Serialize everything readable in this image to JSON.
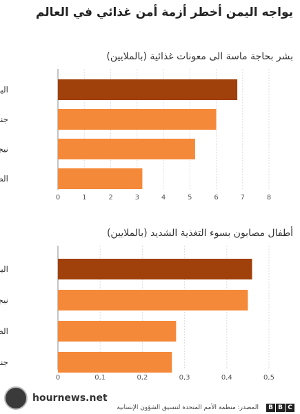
{
  "title": "يواجه اليمن أخطر أزمة أمن غذائي في العالم",
  "watermark": "hournews.net",
  "source": "المصدر: منظمة الأمم المتحدة لتنسيق الشؤون الإنسانية",
  "logo_letters": [
    "B",
    "B",
    "C"
  ],
  "chart_data": [
    {
      "type": "bar",
      "orientation": "horizontal",
      "title": "بشر بحاجة ماسة الى معونات غذائية (بالملايين)",
      "categories": [
        "اليمن",
        "جنوب السودان",
        "نيجيريا",
        "الصومال"
      ],
      "values": [
        6.8,
        6.0,
        5.2,
        3.2
      ],
      "xlim": [
        0,
        8
      ],
      "ticks": [
        "0",
        "1",
        "2",
        "3",
        "4",
        "5",
        "6",
        "7",
        "8"
      ],
      "tick_values": [
        0,
        1,
        2,
        3,
        4,
        5,
        6,
        7,
        8
      ],
      "colors": [
        "#a0400a",
        "#f5893a",
        "#f5893a",
        "#f5893a"
      ],
      "grid": true
    },
    {
      "type": "bar",
      "orientation": "horizontal",
      "title": "أطفال مصابون بسوء التغذية الشديد (بالملايين)",
      "categories": [
        "اليمن",
        "نيجيريا",
        "الصومال",
        "جنوب السودان"
      ],
      "values": [
        0.46,
        0.45,
        0.28,
        0.27
      ],
      "xlim": [
        0,
        0.5
      ],
      "ticks": [
        "0",
        "0,1",
        "0,2",
        "0,3",
        "0,4",
        "0,5"
      ],
      "tick_values": [
        0,
        0.1,
        0.2,
        0.3,
        0.4,
        0.5
      ],
      "colors": [
        "#a0400a",
        "#f5893a",
        "#f5893a",
        "#f5893a"
      ],
      "grid": true
    }
  ]
}
